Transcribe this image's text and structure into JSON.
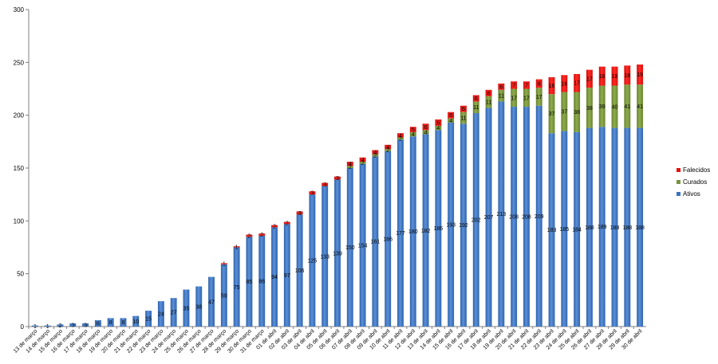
{
  "chart_data": {
    "type": "bar",
    "stacked": true,
    "title": "",
    "xlabel": "",
    "ylabel": "",
    "ylim": [
      0,
      300
    ],
    "yticks": [
      0,
      50,
      100,
      150,
      200,
      250,
      300
    ],
    "grid": false,
    "legend_position": "right",
    "categories": [
      "13 de março",
      "14 de março",
      "15 de março",
      "16 de março",
      "17 de março",
      "18 de março",
      "19 de março",
      "20 de março",
      "21 de março",
      "22 de março",
      "23 de março",
      "24 de março",
      "25 de março",
      "26 de março",
      "27 de março",
      "28 de março",
      "29 de março",
      "30 de março",
      "31 de março",
      "01 de abril",
      "02 de abril",
      "03 de abril",
      "04 de abril",
      "05 de abril",
      "06 de abril",
      "07 de abril",
      "08 de abril",
      "09 de abril",
      "10 de abril",
      "11 de abril",
      "12 de abril",
      "13 de abril",
      "14 de abril",
      "15 de abril",
      "16 de abril",
      "17 de abril",
      "18 de abril",
      "19 de abril",
      "20 de abril",
      "21 de abril",
      "22 de abril",
      "23 de abril",
      "24 de abril",
      "25 de abril",
      "26 de abril",
      "27 de abril",
      "28 de abril",
      "29 de abril",
      "30 de abril"
    ],
    "series": [
      {
        "name": "Ativos",
        "color": "#3a73c2",
        "values": [
          1,
          1,
          2,
          3,
          3,
          6,
          8,
          8,
          10,
          15,
          24,
          27,
          35,
          38,
          47,
          59,
          75,
          85,
          86,
          94,
          97,
          106,
          125,
          133,
          139,
          150,
          154,
          161,
          166,
          177,
          180,
          182,
          186,
          193,
          192,
          202,
          207,
          213,
          208,
          208,
          209,
          183,
          185,
          184,
          188,
          189,
          188,
          188,
          188
        ]
      },
      {
        "name": "Curados",
        "color": "#77933c",
        "values": [
          0,
          0,
          0,
          0,
          0,
          0,
          0,
          0,
          0,
          0,
          0,
          0,
          0,
          0,
          0,
          0,
          0,
          0,
          0,
          0,
          0,
          0,
          0,
          0,
          0,
          2,
          2,
          2,
          2,
          2,
          4,
          4,
          4,
          4,
          11,
          11,
          11,
          11,
          17,
          17,
          17,
          37,
          37,
          38,
          38,
          39,
          40,
          41,
          41
        ]
      },
      {
        "name": "Falecidos",
        "color": "#e8120f",
        "values": [
          0,
          0,
          0,
          0,
          0,
          0,
          0,
          0,
          0,
          0,
          0,
          0,
          0,
          0,
          0,
          1,
          1,
          2,
          2,
          2,
          2,
          3,
          3,
          3,
          3,
          4,
          4,
          4,
          4,
          4,
          5,
          6,
          6,
          6,
          6,
          6,
          6,
          6,
          7,
          7,
          8,
          16,
          16,
          17,
          17,
          18,
          18,
          18,
          19
        ]
      }
    ],
    "data_labels": {
      "Ativos": [
        "1",
        "1",
        "2",
        "3",
        "3",
        "6",
        "8",
        "8",
        "10",
        "15",
        "24",
        "27",
        "35",
        "38",
        "47",
        "59",
        "75",
        "85",
        "86",
        "94",
        "97",
        "106",
        "125",
        "133",
        "139",
        "150",
        "154",
        "161",
        "166",
        "177",
        "180",
        "182",
        "186",
        "193",
        "192",
        "202",
        "207",
        "213",
        "208",
        "208",
        "209",
        "183",
        "185",
        "184",
        "188",
        "189",
        "188",
        "188",
        "188"
      ],
      "Curados": [
        "",
        "",
        "",
        "",
        "",
        "",
        "",
        "",
        "",
        "",
        "",
        "",
        "",
        "",
        "",
        "",
        "",
        "",
        "",
        "",
        "",
        "",
        "",
        "",
        "",
        "2",
        "2",
        "2",
        "2",
        "2",
        "4",
        "4",
        "4",
        "4",
        "11",
        "11",
        "11",
        "11",
        "17",
        "17",
        "17",
        "37",
        "37",
        "38",
        "38",
        "39",
        "40",
        "41",
        "41"
      ],
      "Falecidos": [
        "",
        "",
        "",
        "",
        "",
        "",
        "",
        "",
        "",
        "",
        "",
        "",
        "",
        "",
        "",
        "1",
        "1",
        "2",
        "2",
        "2",
        "2",
        "3",
        "3",
        "3",
        "3",
        "4",
        "4",
        "4",
        "4",
        "4",
        "5",
        "6",
        "6",
        "6",
        "6",
        "6",
        "6",
        "6",
        "7",
        "7",
        "8",
        "16",
        "16",
        "17",
        "17",
        "18",
        "18",
        "18",
        "19"
      ]
    }
  }
}
